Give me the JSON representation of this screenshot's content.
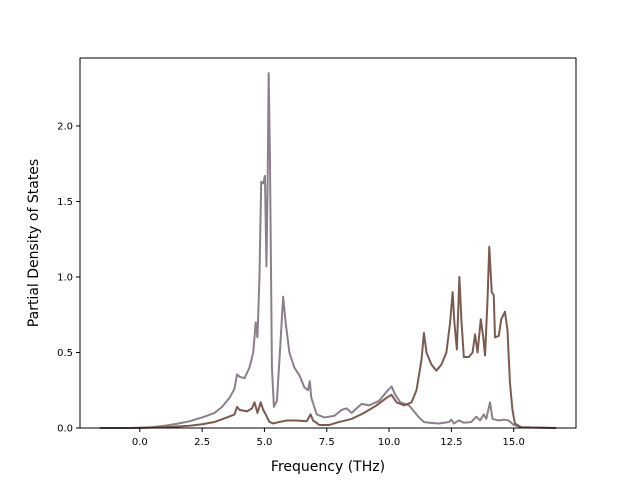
{
  "chart_data": {
    "type": "line",
    "xlabel": "Frequency (THz)",
    "ylabel": "Partial Density of States",
    "xlim": [
      -2.4,
      17.5
    ],
    "ylim": [
      0.0,
      2.45
    ],
    "xticks": [
      0.0,
      2.5,
      5.0,
      7.5,
      10.0,
      12.5,
      15.0
    ],
    "xtick_labels": [
      "0.0",
      "2.5",
      "5.0",
      "7.5",
      "10.0",
      "12.5",
      "15.0"
    ],
    "yticks": [
      0.0,
      0.5,
      1.0,
      1.5,
      2.0
    ],
    "ytick_labels": [
      "0.0",
      "0.5",
      "1.0",
      "1.5",
      "2.0"
    ],
    "grid": false,
    "series": [
      {
        "color": "#8c7f8c",
        "points": [
          [
            -1.6,
            0.0
          ],
          [
            -0.4,
            0.0
          ],
          [
            0.0,
            0.002
          ],
          [
            0.5,
            0.006
          ],
          [
            1.0,
            0.015
          ],
          [
            1.5,
            0.028
          ],
          [
            2.0,
            0.045
          ],
          [
            2.5,
            0.07
          ],
          [
            3.0,
            0.1
          ],
          [
            3.3,
            0.14
          ],
          [
            3.6,
            0.2
          ],
          [
            3.8,
            0.26
          ],
          [
            3.9,
            0.355
          ],
          [
            4.0,
            0.34
          ],
          [
            4.2,
            0.33
          ],
          [
            4.4,
            0.4
          ],
          [
            4.55,
            0.5
          ],
          [
            4.65,
            0.7
          ],
          [
            4.72,
            0.6
          ],
          [
            4.8,
            1.0
          ],
          [
            4.87,
            1.63
          ],
          [
            4.95,
            1.62
          ],
          [
            5.02,
            1.67
          ],
          [
            5.08,
            1.07
          ],
          [
            5.13,
            1.65
          ],
          [
            5.17,
            2.35
          ],
          [
            5.22,
            1.8
          ],
          [
            5.3,
            0.4
          ],
          [
            5.38,
            0.14
          ],
          [
            5.5,
            0.18
          ],
          [
            5.62,
            0.5
          ],
          [
            5.75,
            0.87
          ],
          [
            5.85,
            0.7
          ],
          [
            6.0,
            0.5
          ],
          [
            6.2,
            0.4
          ],
          [
            6.4,
            0.35
          ],
          [
            6.6,
            0.27
          ],
          [
            6.75,
            0.25
          ],
          [
            6.82,
            0.31
          ],
          [
            6.88,
            0.2
          ],
          [
            7.1,
            0.09
          ],
          [
            7.4,
            0.07
          ],
          [
            7.8,
            0.08
          ],
          [
            8.1,
            0.12
          ],
          [
            8.3,
            0.13
          ],
          [
            8.5,
            0.1
          ],
          [
            8.7,
            0.13
          ],
          [
            8.9,
            0.16
          ],
          [
            9.2,
            0.15
          ],
          [
            9.6,
            0.18
          ],
          [
            9.9,
            0.24
          ],
          [
            10.1,
            0.275
          ],
          [
            10.25,
            0.22
          ],
          [
            10.45,
            0.17
          ],
          [
            10.8,
            0.15
          ],
          [
            11.0,
            0.11
          ],
          [
            11.2,
            0.07
          ],
          [
            11.4,
            0.04
          ],
          [
            11.6,
            0.035
          ],
          [
            12.0,
            0.03
          ],
          [
            12.4,
            0.04
          ],
          [
            12.5,
            0.055
          ],
          [
            12.6,
            0.03
          ],
          [
            12.8,
            0.05
          ],
          [
            13.0,
            0.035
          ],
          [
            13.3,
            0.04
          ],
          [
            13.5,
            0.075
          ],
          [
            13.65,
            0.05
          ],
          [
            13.8,
            0.09
          ],
          [
            13.9,
            0.06
          ],
          [
            14.05,
            0.17
          ],
          [
            14.15,
            0.06
          ],
          [
            14.4,
            0.05
          ],
          [
            14.6,
            0.055
          ],
          [
            14.8,
            0.05
          ],
          [
            15.0,
            0.02
          ],
          [
            15.3,
            0.005
          ],
          [
            16.7,
            0.0
          ]
        ]
      },
      {
        "color": "#7d5a50",
        "points": [
          [
            -1.6,
            0.0
          ],
          [
            -0.4,
            0.0
          ],
          [
            0.0,
            0.001
          ],
          [
            1.0,
            0.005
          ],
          [
            2.0,
            0.015
          ],
          [
            2.5,
            0.025
          ],
          [
            3.0,
            0.04
          ],
          [
            3.5,
            0.07
          ],
          [
            3.8,
            0.09
          ],
          [
            3.9,
            0.14
          ],
          [
            4.0,
            0.12
          ],
          [
            4.3,
            0.11
          ],
          [
            4.5,
            0.13
          ],
          [
            4.6,
            0.17
          ],
          [
            4.72,
            0.1
          ],
          [
            4.85,
            0.17
          ],
          [
            4.95,
            0.12
          ],
          [
            5.05,
            0.09
          ],
          [
            5.2,
            0.04
          ],
          [
            5.35,
            0.03
          ],
          [
            5.6,
            0.04
          ],
          [
            5.9,
            0.05
          ],
          [
            6.3,
            0.05
          ],
          [
            6.7,
            0.045
          ],
          [
            6.85,
            0.09
          ],
          [
            6.95,
            0.05
          ],
          [
            7.2,
            0.02
          ],
          [
            7.6,
            0.02
          ],
          [
            8.0,
            0.04
          ],
          [
            8.5,
            0.06
          ],
          [
            9.0,
            0.1
          ],
          [
            9.5,
            0.15
          ],
          [
            9.9,
            0.2
          ],
          [
            10.1,
            0.22
          ],
          [
            10.3,
            0.17
          ],
          [
            10.6,
            0.15
          ],
          [
            10.9,
            0.17
          ],
          [
            11.1,
            0.25
          ],
          [
            11.3,
            0.45
          ],
          [
            11.4,
            0.63
          ],
          [
            11.5,
            0.5
          ],
          [
            11.7,
            0.42
          ],
          [
            11.9,
            0.38
          ],
          [
            12.1,
            0.42
          ],
          [
            12.3,
            0.5
          ],
          [
            12.45,
            0.7
          ],
          [
            12.55,
            0.9
          ],
          [
            12.62,
            0.7
          ],
          [
            12.72,
            0.52
          ],
          [
            12.82,
            1.0
          ],
          [
            12.9,
            0.72
          ],
          [
            13.0,
            0.47
          ],
          [
            13.2,
            0.47
          ],
          [
            13.35,
            0.5
          ],
          [
            13.45,
            0.62
          ],
          [
            13.55,
            0.5
          ],
          [
            13.68,
            0.72
          ],
          [
            13.78,
            0.6
          ],
          [
            13.85,
            0.48
          ],
          [
            13.95,
            0.85
          ],
          [
            14.02,
            1.2
          ],
          [
            14.12,
            0.9
          ],
          [
            14.2,
            0.88
          ],
          [
            14.25,
            0.6
          ],
          [
            14.4,
            0.61
          ],
          [
            14.5,
            0.72
          ],
          [
            14.65,
            0.77
          ],
          [
            14.75,
            0.65
          ],
          [
            14.85,
            0.3
          ],
          [
            14.95,
            0.12
          ],
          [
            15.05,
            0.03
          ],
          [
            15.3,
            0.005
          ],
          [
            16.7,
            0.0
          ]
        ]
      }
    ]
  }
}
